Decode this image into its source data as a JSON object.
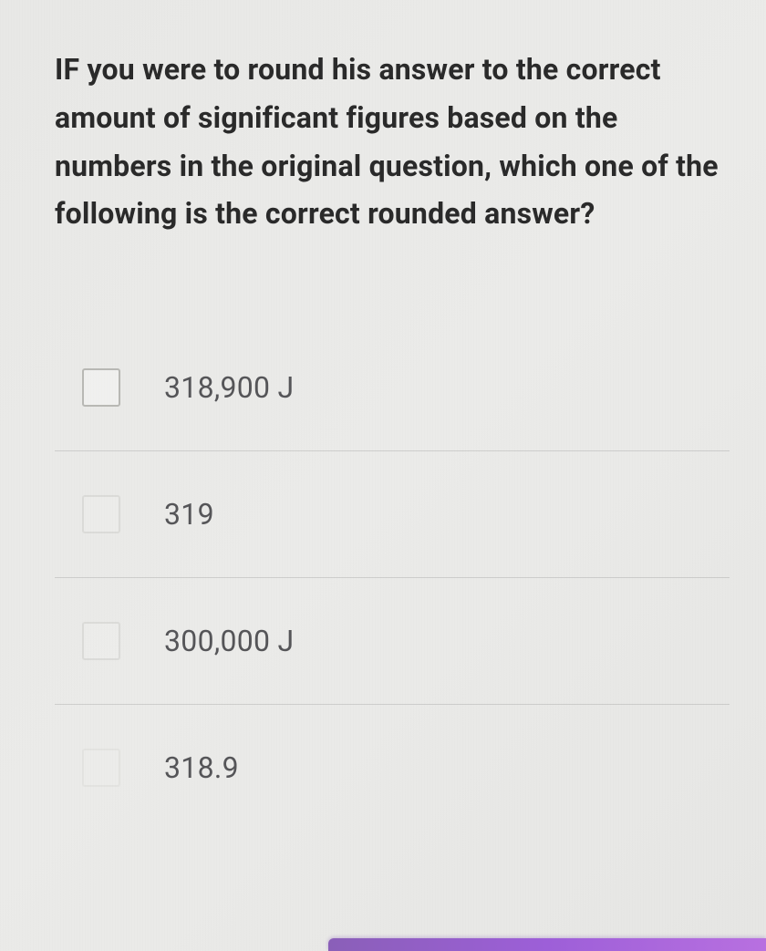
{
  "question": {
    "text": "IF you were to round his answer to the correct amount of significant figures based on the numbers in the original question, which one of the following is the correct rounded answer?"
  },
  "options": [
    {
      "label": "318,900 J",
      "checkbox_opacity": "normal"
    },
    {
      "label": "319",
      "checkbox_opacity": "faded"
    },
    {
      "label": "300,000 J",
      "checkbox_opacity": "faded"
    },
    {
      "label": "318.9",
      "checkbox_opacity": "very-faded"
    }
  ],
  "colors": {
    "background": "#e8e8e6",
    "text_primary": "#2a2a2a",
    "text_secondary": "#555558",
    "checkbox_border": "#b8b8b4",
    "divider": "rgba(120,120,120,0.25)",
    "accent_bar": "#9d5fd8"
  },
  "typography": {
    "question_fontsize": 32,
    "question_fontweight": 700,
    "option_fontsize": 32,
    "option_fontweight": 400
  }
}
